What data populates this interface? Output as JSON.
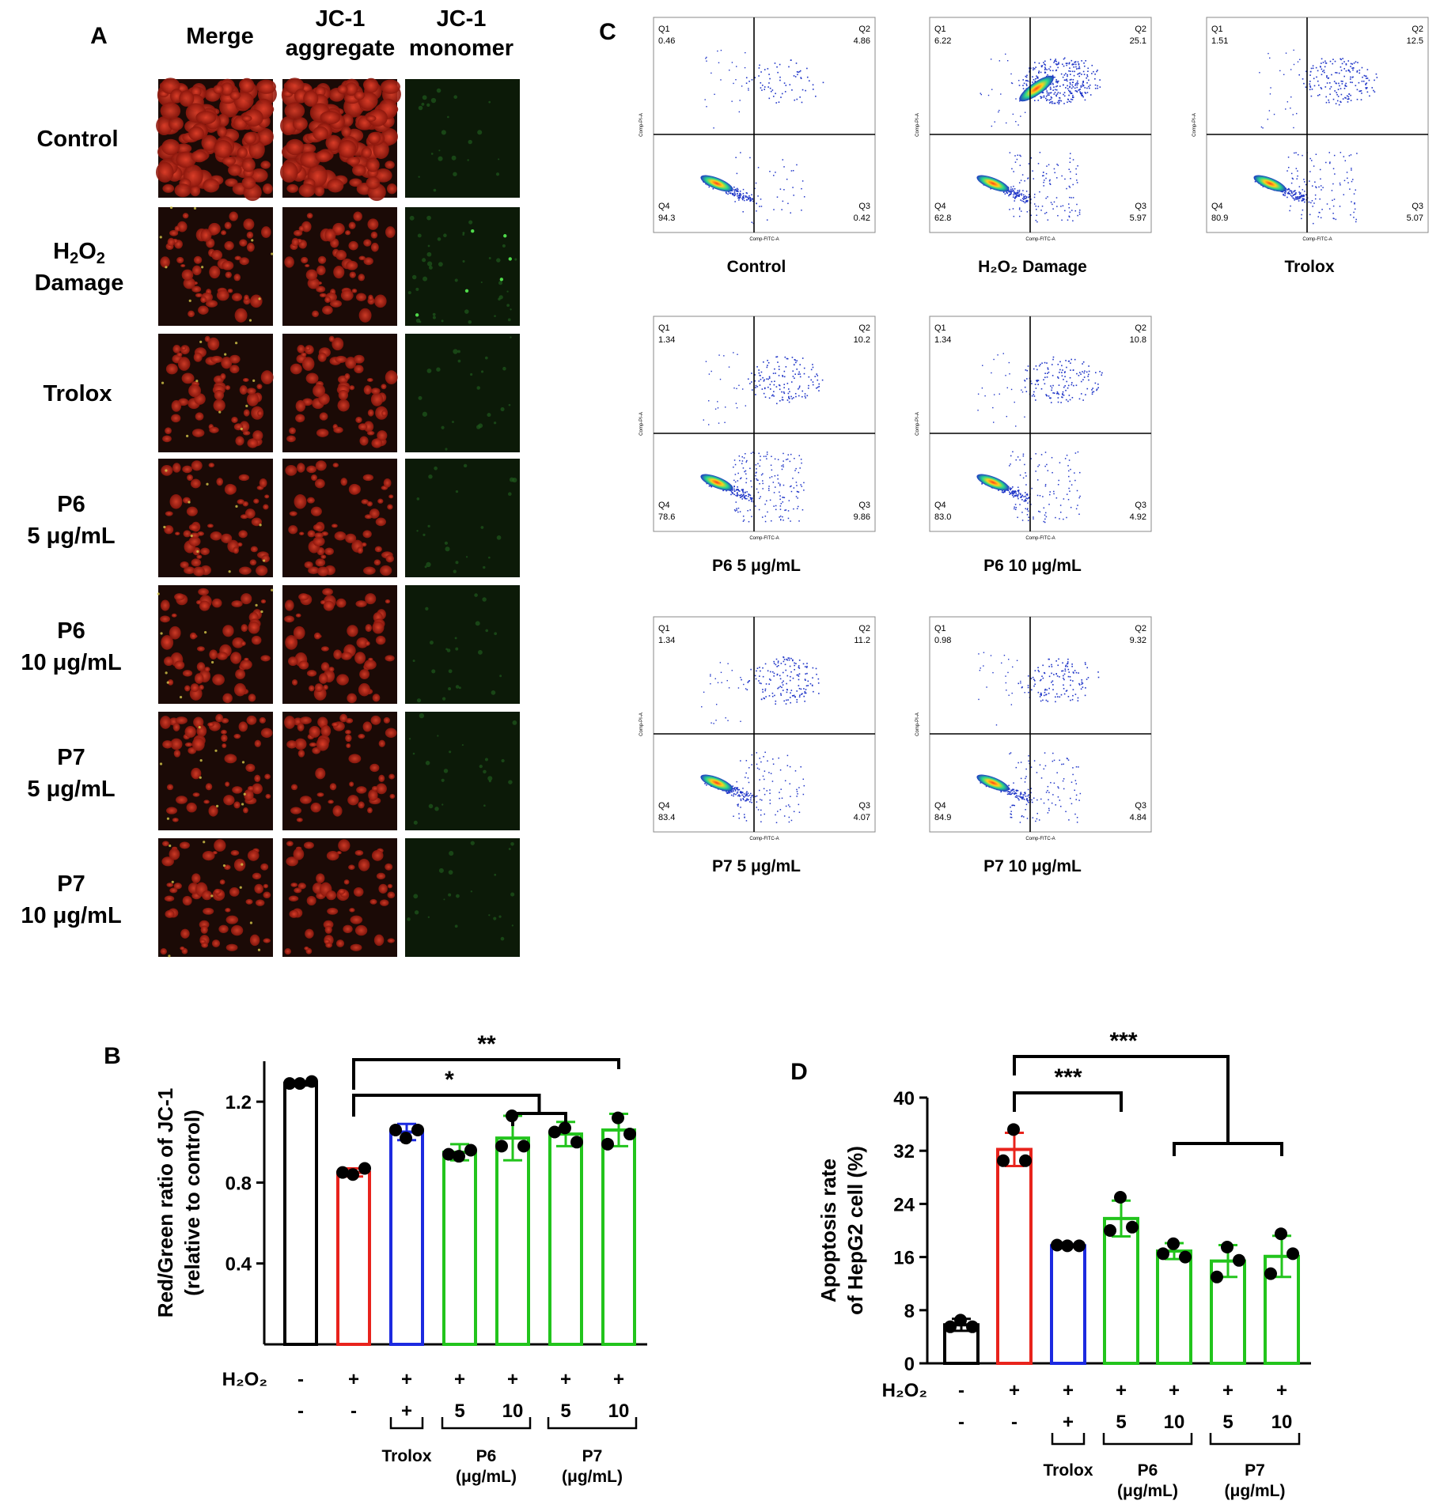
{
  "panel_labels": {
    "a": "A",
    "b": "B",
    "c": "C",
    "d": "D"
  },
  "panel_a": {
    "col_headers": [
      {
        "line1": "Merge",
        "line2": ""
      },
      {
        "line1": "JC-1",
        "line2": "aggregate"
      },
      {
        "line1": "JC-1",
        "line2": "monomer"
      }
    ],
    "row_labels": [
      {
        "line1": "Control",
        "line2": "",
        "line1_sub": ""
      },
      {
        "line1": "H",
        "line1_sub": "2",
        "line1_rest": "O",
        "line1_sub2": "2",
        "line2": "Damage"
      },
      {
        "line1": "Trolox",
        "line2": "",
        "line1_sub": ""
      },
      {
        "line1": "P6",
        "line2": "5 μg/mL",
        "line1_sub": ""
      },
      {
        "line1": "P6",
        "line2": "10 μg/mL",
        "line1_sub": ""
      },
      {
        "line1": "P7",
        "line2": "5 μg/mL",
        "line1_sub": ""
      },
      {
        "line1": "P7",
        "line2": "10 μg/mL",
        "line1_sub": ""
      }
    ],
    "red_stain_color": "#c0261a",
    "green_stain_color": "#1f5a1c",
    "dark_bg": "#1b0a06"
  },
  "panel_c": {
    "x_axis_label": "Comp-FITC-A",
    "y_axis_label": "Comp-PI-A",
    "plots": [
      {
        "caption": "Control",
        "q1": "0.46",
        "q2": "4.86",
        "q3": "0.42",
        "q4": "94.3"
      },
      {
        "caption": "H₂O₂ Damage",
        "q1": "6.22",
        "q2": "25.1",
        "q3": "5.97",
        "q4": "62.8"
      },
      {
        "caption": "Trolox",
        "q1": "1.51",
        "q2": "12.5",
        "q3": "5.07",
        "q4": "80.9"
      },
      {
        "caption": "P6 5 μg/mL",
        "q1": "1.34",
        "q2": "10.2",
        "q3": "9.86",
        "q4": "78.6"
      },
      {
        "caption": "P6 10 μg/mL",
        "q1": "1.34",
        "q2": "10.8",
        "q3": "4.92",
        "q4": "83.0"
      },
      {
        "caption": "P7 5 μg/mL",
        "q1": "1.34",
        "q2": "11.2",
        "q3": "4.07",
        "q4": "83.4"
      },
      {
        "caption": "P7 10 μg/mL",
        "q1": "0.98",
        "q2": "9.32",
        "q3": "4.84",
        "q4": "84.9"
      }
    ],
    "quadrant_names": [
      "Q1",
      "Q2",
      "Q3",
      "Q4"
    ],
    "dot_color": "#1f35c8"
  },
  "chart_data": [
    {
      "type": "bar",
      "panel": "B",
      "ylabel": "Red/Green ratio of JC-1 (relative to control)",
      "ylabel_line1": "Red/Green ratio of JC-1",
      "ylabel_line2": "(relative to control)",
      "ylim": [
        0,
        1.4
      ],
      "yticks": [
        "0.4",
        "0.8",
        "1.2"
      ],
      "ytick_values": [
        0.4,
        0.8,
        1.2
      ],
      "values": [
        1.29,
        0.85,
        1.05,
        0.95,
        1.02,
        1.04,
        1.06
      ],
      "errors": [
        0.01,
        0.02,
        0.04,
        0.04,
        0.11,
        0.06,
        0.08
      ],
      "points": [
        [
          1.29,
          1.3,
          1.29
        ],
        [
          0.84,
          0.87,
          0.85
        ],
        [
          1.02,
          1.06,
          1.06
        ],
        [
          0.93,
          0.96,
          0.94
        ],
        [
          1.13,
          0.98,
          0.98
        ],
        [
          1.07,
          1.0,
          1.05
        ],
        [
          1.12,
          1.04,
          0.99
        ]
      ],
      "colors": [
        "#000000",
        "#e8231c",
        "#1c2ae0",
        "#22c41c",
        "#22c41c",
        "#22c41c",
        "#22c41c"
      ],
      "h2o2_label": "H₂O₂",
      "h2o2_row": [
        "-",
        "+",
        "+",
        "+",
        "+",
        "+",
        "+"
      ],
      "treat_row": [
        "-",
        "-",
        "+",
        "5",
        "10",
        "5",
        "10"
      ],
      "groups": [
        {
          "label1": "Trolox",
          "label2": "",
          "from": 2,
          "to": 2
        },
        {
          "label1": "P6",
          "label2": "(μg/mL)",
          "from": 3,
          "to": 4
        },
        {
          "label1": "P7",
          "label2": "(μg/mL)",
          "from": 5,
          "to": 6
        }
      ],
      "significance": [
        {
          "label": "*",
          "from": 1,
          "to_bracket": [
            4,
            5
          ]
        },
        {
          "label": "**",
          "from": 1,
          "to": 6
        }
      ]
    },
    {
      "type": "bar",
      "panel": "D",
      "ylabel": "Apoptosis rate of HepG2 cell (%)",
      "ylabel_line1": "Apoptosis rate",
      "ylabel_line2": "of HepG2 cell (%)",
      "ylim": [
        0,
        40
      ],
      "yticks": [
        "0",
        "8",
        "16",
        "24",
        "32",
        "40"
      ],
      "ytick_values": [
        0,
        8,
        16,
        24,
        32,
        40
      ],
      "values": [
        5.8,
        32.2,
        17.7,
        21.8,
        16.9,
        15.4,
        16.1
      ],
      "errors": [
        0.9,
        2.5,
        0.2,
        2.7,
        1.2,
        2.4,
        3.1
      ],
      "points": [
        [
          6.5,
          5.5,
          5.5
        ],
        [
          35.2,
          30.5,
          30.5
        ],
        [
          17.7,
          17.7,
          17.8
        ],
        [
          25.0,
          20.5,
          20.0
        ],
        [
          18.0,
          16.0,
          16.5
        ],
        [
          17.5,
          15.5,
          13.0
        ],
        [
          19.5,
          16.5,
          13.5
        ]
      ],
      "colors": [
        "#000000",
        "#e8231c",
        "#1c2ae0",
        "#22c41c",
        "#22c41c",
        "#22c41c",
        "#22c41c"
      ],
      "h2o2_label": "H₂O₂",
      "h2o2_row": [
        "-",
        "+",
        "+",
        "+",
        "+",
        "+",
        "+"
      ],
      "treat_row": [
        "-",
        "-",
        "+",
        "5",
        "10",
        "5",
        "10"
      ],
      "groups": [
        {
          "label1": "Trolox",
          "label2": "",
          "from": 2,
          "to": 2
        },
        {
          "label1": "P6",
          "label2": "(μg/mL)",
          "from": 3,
          "to": 4
        },
        {
          "label1": "P7",
          "label2": "(μg/mL)",
          "from": 5,
          "to": 6
        }
      ],
      "significance": [
        {
          "label": "***",
          "from": 1,
          "to": 3
        },
        {
          "label": "***",
          "from": 1,
          "to_bracket": [
            4,
            6
          ]
        }
      ]
    }
  ]
}
